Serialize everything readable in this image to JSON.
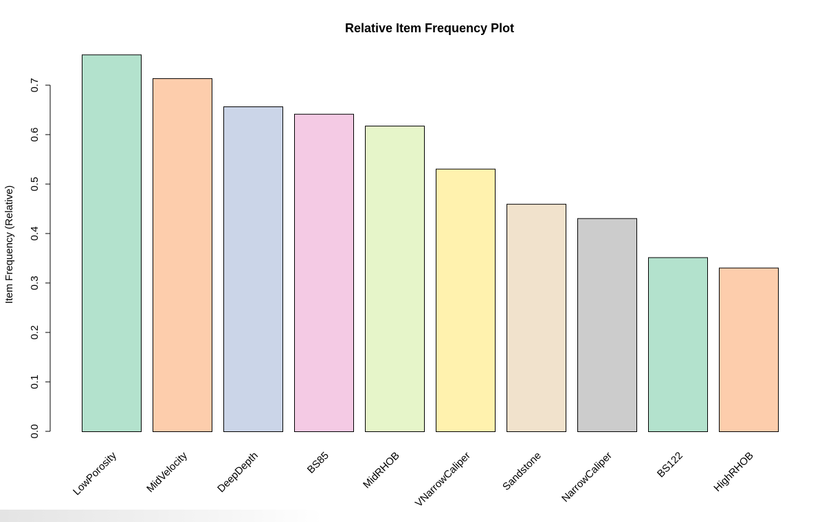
{
  "chart_data": {
    "type": "bar",
    "title": "Relative Item Frequency Plot",
    "xlabel": "",
    "ylabel": "Item Frequency (Relative)",
    "ylim": [
      0,
      0.76
    ],
    "yticks": [
      0.0,
      0.1,
      0.2,
      0.3,
      0.4,
      0.5,
      0.6,
      0.7
    ],
    "ytick_labels": [
      "0.0",
      "0.1",
      "0.2",
      "0.3",
      "0.4",
      "0.5",
      "0.6",
      "0.7"
    ],
    "grid": false,
    "categories": [
      "LowPorosity",
      "MidVelocity",
      "DeepDepth",
      "BS85",
      "MidRHOB",
      "VNarrowCaliper",
      "Sandstone",
      "NarrowCaliper",
      "BS122",
      "HighRHOB"
    ],
    "values": [
      0.762,
      0.714,
      0.657,
      0.642,
      0.618,
      0.531,
      0.46,
      0.431,
      0.352,
      0.331
    ],
    "colors": [
      "#B3E2CD",
      "#FDCDAC",
      "#CBD5E8",
      "#F4CAE4",
      "#E6F5C9",
      "#FFF2AE",
      "#F1E2CC",
      "#CCCCCC",
      "#B3E2CD",
      "#FDCDAC"
    ]
  }
}
